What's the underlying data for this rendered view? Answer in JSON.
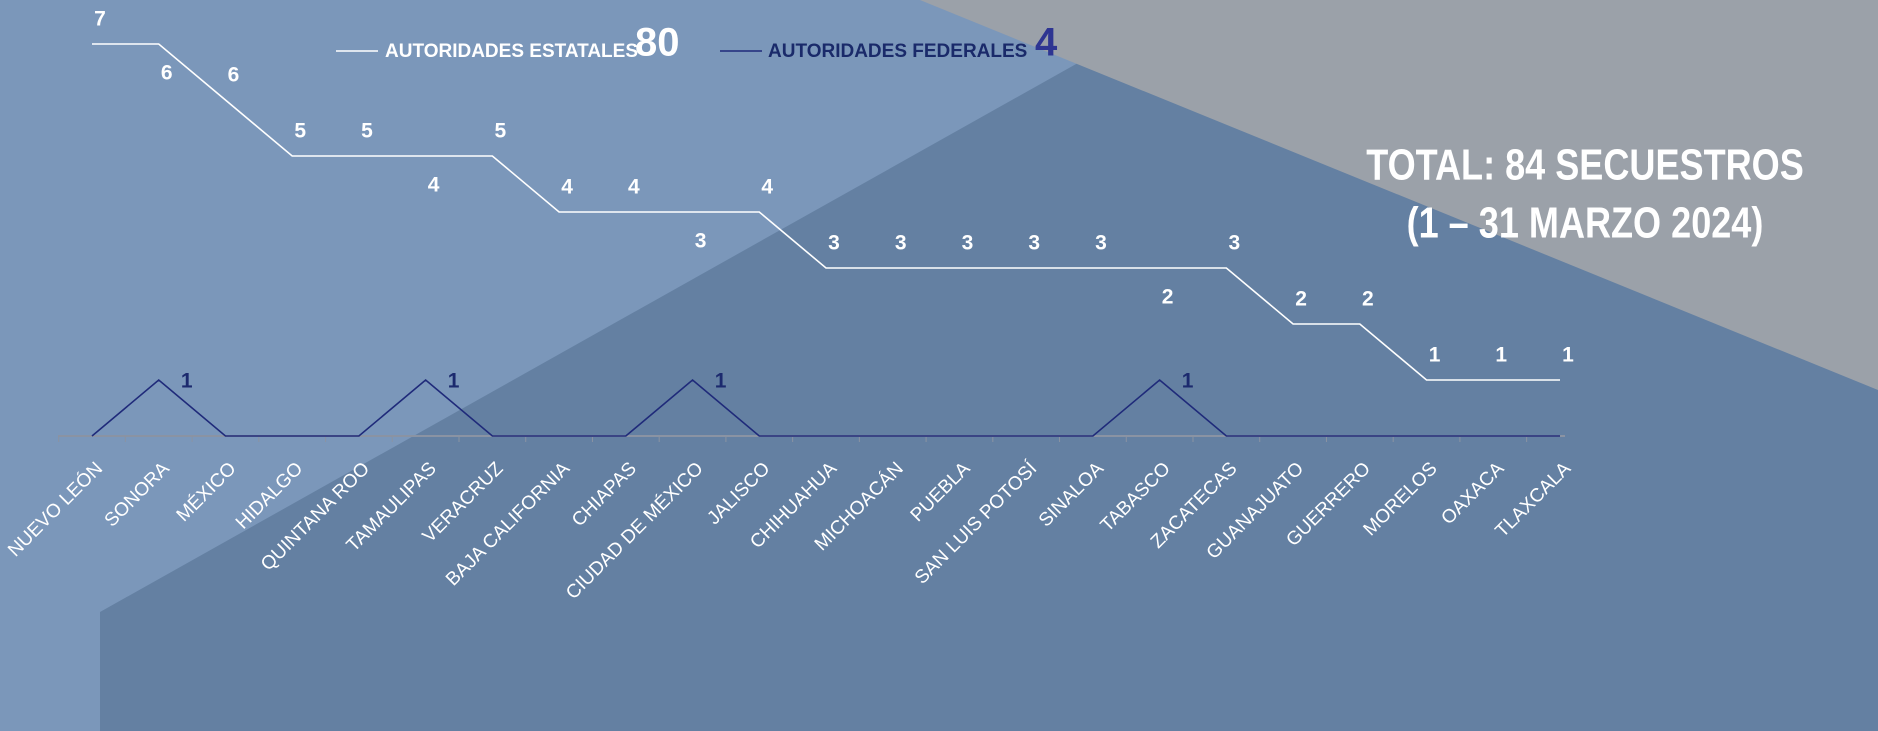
{
  "chart_data": {
    "type": "line",
    "title": "TOTAL: 84 SECUESTROS",
    "subtitle": "(1 – 31 MARZO 2024)",
    "categories": [
      "NUEVO LEÓN",
      "SONORA",
      "MÉXICO",
      "HIDALGO",
      "QUINTANA ROO",
      "TAMAULIPAS",
      "VERACRUZ",
      "BAJA CALIFORNIA",
      "CHIAPAS",
      "CIUDAD DE MÉXICO",
      "JALISCO",
      "CHIHUAHUA",
      "MICHOACÁN",
      "PUEBLA",
      "SAN LUIS POTOSÍ",
      "SINALOA",
      "TABASCO",
      "ZACATECAS",
      "GUANAJUATO",
      "GUERRERO",
      "MORELOS",
      "OAXACA",
      "TLAXCALA"
    ],
    "series": [
      {
        "name": "AUTORIDADES FEDERALES",
        "total": 4,
        "color": "#1f2a7a",
        "values": [
          0,
          1,
          0,
          0,
          0,
          1,
          0,
          0,
          0,
          1,
          0,
          0,
          0,
          0,
          0,
          0,
          1,
          0,
          0,
          0,
          0,
          0,
          0
        ]
      },
      {
        "name": "AUTORIDADES ESTATALES",
        "total": 80,
        "color": "#ffffff",
        "values": [
          7,
          6,
          6,
          5,
          5,
          4,
          5,
          4,
          4,
          3,
          4,
          3,
          3,
          3,
          3,
          3,
          2,
          3,
          2,
          2,
          1,
          1,
          1
        ]
      }
    ],
    "stacked": true,
    "ylim": [
      0,
      8
    ]
  }
}
